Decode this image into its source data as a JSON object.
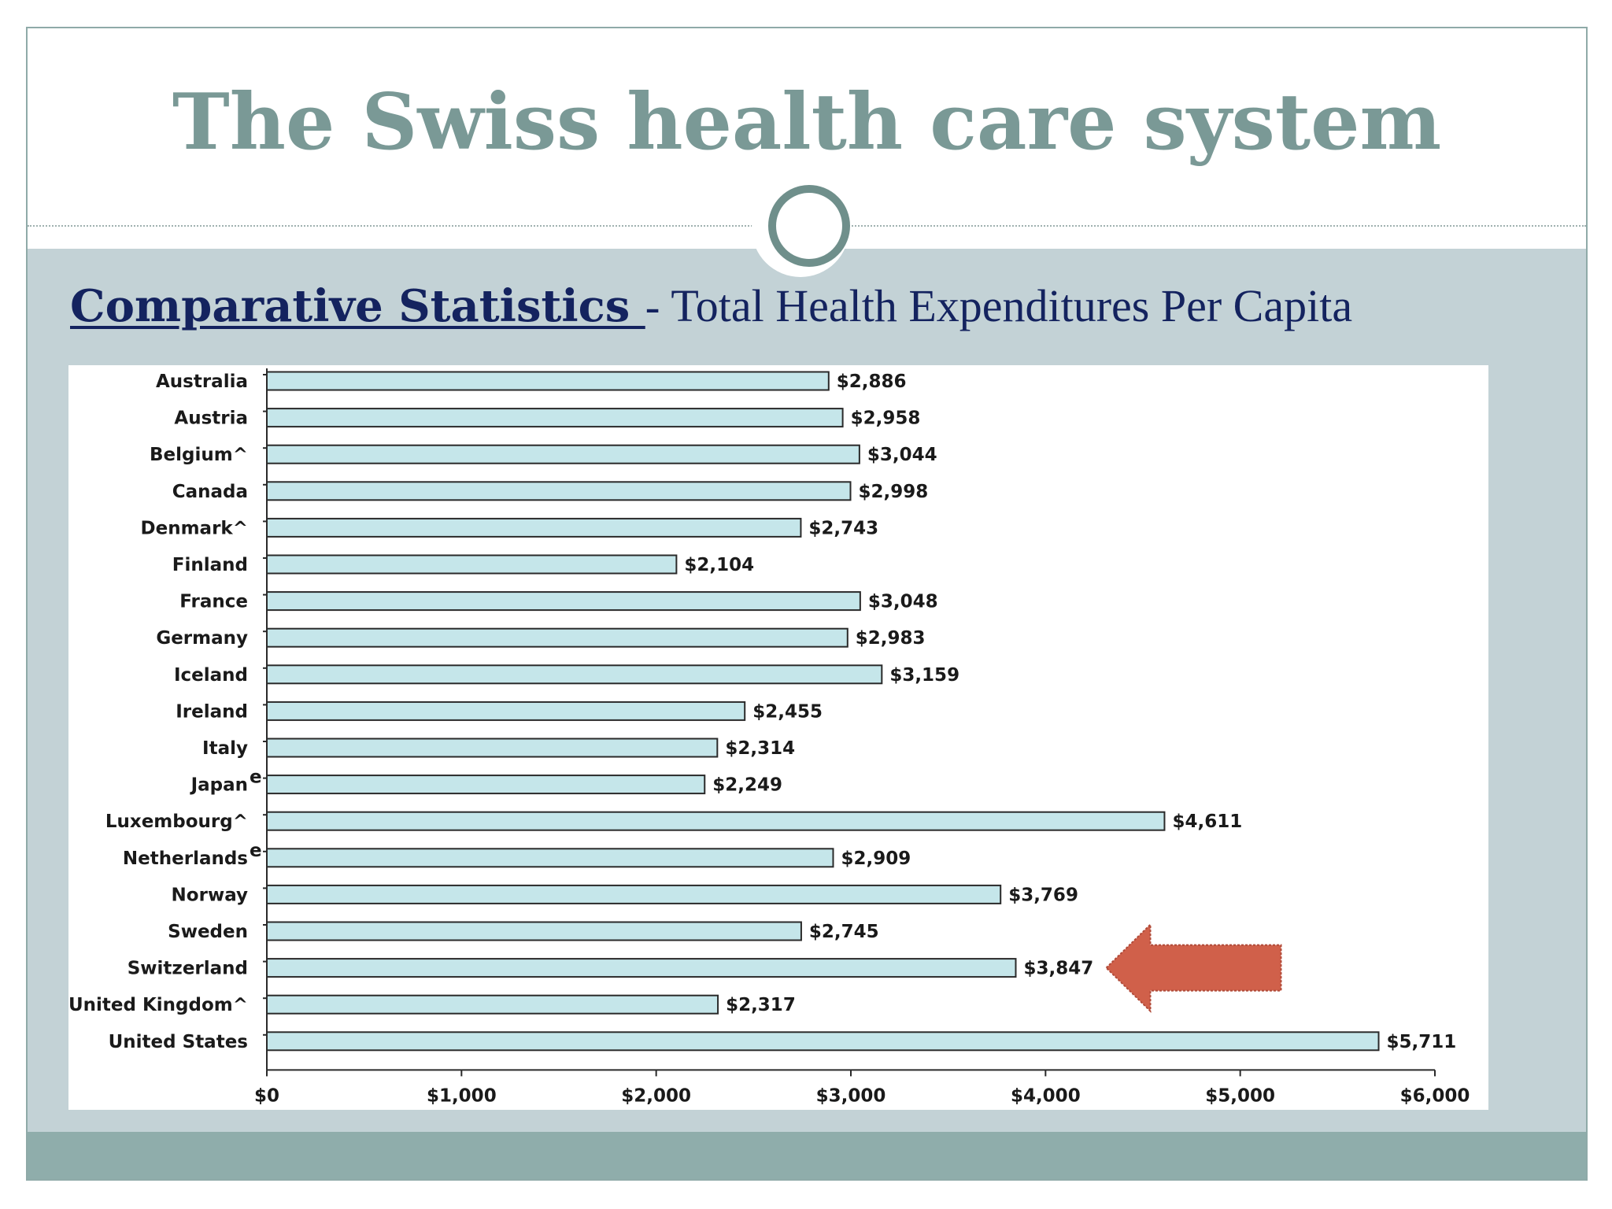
{
  "slide": {
    "title": "The Swiss health care system",
    "subtitle_strong": "Comparative Statistics ",
    "subtitle_sep": "- ",
    "subtitle_rest": "Total Health Expenditures Per Capita"
  },
  "colors": {
    "title": "#7a9996",
    "band": "#c3d2d6",
    "footer": "#8fadab",
    "bar_fill": "#c5e6ea",
    "arrow": "#d0604a",
    "subtitle": "#14235f"
  },
  "chart_data": {
    "type": "bar",
    "orientation": "horizontal",
    "title": "",
    "xlabel": "",
    "ylabel": "",
    "xlim": [
      0,
      6000
    ],
    "ticks": [
      0,
      1000,
      2000,
      3000,
      4000,
      5000,
      6000
    ],
    "tick_labels": [
      "$0",
      "$1,000",
      "$2,000",
      "$3,000",
      "$4,000",
      "$5,000",
      "$6,000"
    ],
    "grid": false,
    "legend": "none",
    "categories": [
      "Australia",
      "Austria",
      "Belgium^",
      "Canada",
      "Denmark^",
      "Finland",
      "France",
      "Germany",
      "Iceland",
      "Ireland",
      "Italy",
      "Japan",
      "Luxembourg^",
      "Netherlands",
      "Norway",
      "Sweden",
      "Switzerland",
      "United Kingdom^",
      "United States"
    ],
    "category_superscripts": [
      "",
      "",
      "",
      "",
      "",
      "",
      "",
      "",
      "",
      "",
      "",
      "e",
      "",
      "e",
      "",
      "",
      "",
      "",
      ""
    ],
    "values": [
      2886,
      2958,
      3044,
      2998,
      2743,
      2104,
      3048,
      2983,
      3159,
      2455,
      2314,
      2249,
      4611,
      2909,
      3769,
      2745,
      3847,
      2317,
      5711
    ],
    "value_labels": [
      "$2,886",
      "$2,958",
      "$3,044",
      "$2,998",
      "$2,743",
      "$2,104",
      "$3,048",
      "$2,983",
      "$3,159",
      "$2,455",
      "$2,314",
      "$2,249",
      "$4,611",
      "$2,909",
      "$3,769",
      "$2,745",
      "$3,847",
      "$2,317",
      "$5,711"
    ],
    "highlight": {
      "category": "Switzerland",
      "marker": "left-arrow"
    }
  }
}
